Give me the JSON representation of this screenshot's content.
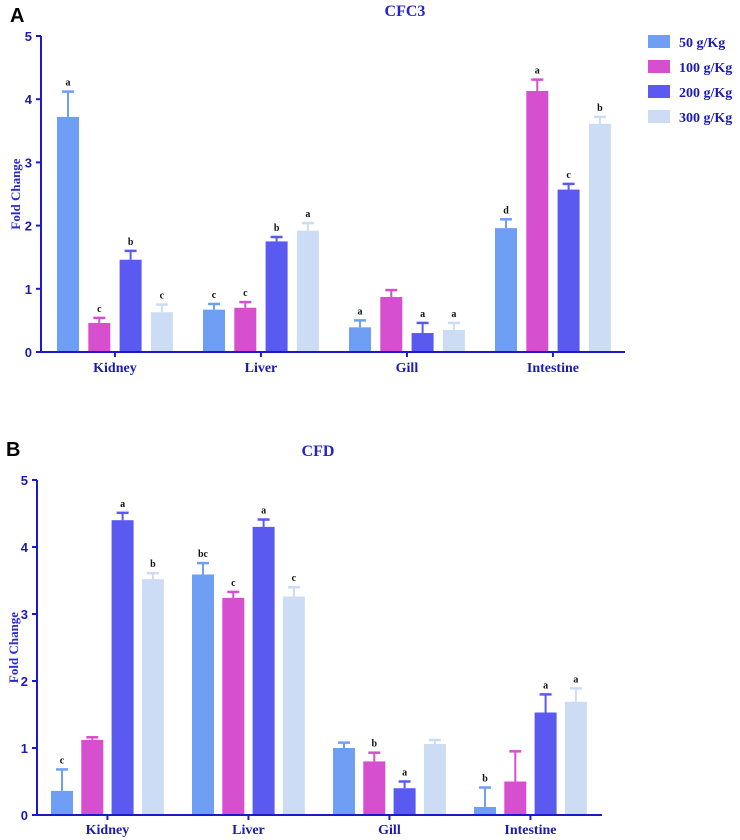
{
  "chart_data": [
    {
      "type": "bar",
      "panel": "A",
      "title": "CFC3",
      "ylabel": "Fold Change",
      "xlabel": "",
      "ylim": [
        0,
        5
      ],
      "yticks": [
        "0",
        "1",
        "2",
        "3",
        "4",
        "5"
      ],
      "categories": [
        "Kidney",
        "Liver",
        "Gill",
        "Intestine"
      ],
      "legend_position": "top-right",
      "series": [
        {
          "name": "50 g/Kg",
          "color": "#6f9ef5",
          "values": [
            3.72,
            0.67,
            0.39,
            1.96
          ],
          "error_upper": [
            4.12,
            0.76,
            0.5,
            2.1
          ],
          "sig": [
            "a",
            "c",
            "a",
            "d"
          ]
        },
        {
          "name": "100 g/Kg",
          "color": "#d64fcf",
          "values": [
            0.46,
            0.7,
            0.87,
            4.13
          ],
          "error_upper": [
            0.54,
            0.79,
            0.98,
            4.31
          ],
          "sig": [
            "c",
            "c",
            "",
            "a"
          ]
        },
        {
          "name": "200 g/Kg",
          "color": "#5a5af0",
          "values": [
            1.46,
            1.75,
            0.3,
            2.57
          ],
          "error_upper": [
            1.6,
            1.82,
            0.46,
            2.66
          ],
          "sig": [
            "b",
            "b",
            "a",
            "c"
          ]
        },
        {
          "name": "300 g/Kg",
          "color": "#cddcf5",
          "values": [
            0.63,
            1.92,
            0.35,
            3.61
          ],
          "error_upper": [
            0.75,
            2.04,
            0.46,
            3.72
          ],
          "sig": [
            "c",
            "a",
            "a",
            "b"
          ]
        }
      ]
    },
    {
      "type": "bar",
      "panel": "B",
      "title": "CFD",
      "ylabel": "Fold Change",
      "xlabel": "",
      "ylim": [
        0,
        5
      ],
      "yticks": [
        "0",
        "1",
        "2",
        "3",
        "4",
        "5"
      ],
      "categories": [
        "Kidney",
        "Liver",
        "Gill",
        "Intestine"
      ],
      "legend_position": "none",
      "series": [
        {
          "name": "50 g/Kg",
          "color": "#6f9ef5",
          "values": [
            0.36,
            3.59,
            1.0,
            0.12
          ],
          "error_upper": [
            0.68,
            3.76,
            1.08,
            0.41
          ],
          "sig": [
            "c",
            "bc",
            "",
            "b"
          ]
        },
        {
          "name": "100 g/Kg",
          "color": "#d64fcf",
          "values": [
            1.12,
            3.24,
            0.8,
            0.5
          ],
          "error_upper": [
            1.16,
            3.33,
            0.93,
            0.95
          ],
          "sig": [
            "",
            "c",
            "b",
            ""
          ]
        },
        {
          "name": "200 g/Kg",
          "color": "#5a5af0",
          "values": [
            4.4,
            4.3,
            0.4,
            1.53
          ],
          "error_upper": [
            4.51,
            4.41,
            0.5,
            1.8
          ],
          "sig": [
            "a",
            "a",
            "a",
            "a"
          ]
        },
        {
          "name": "300 g/Kg",
          "color": "#cddcf5",
          "values": [
            3.52,
            3.26,
            1.06,
            1.69
          ],
          "error_upper": [
            3.61,
            3.4,
            1.12,
            1.89
          ],
          "sig": [
            "b",
            "c",
            "",
            "a"
          ]
        }
      ]
    }
  ]
}
